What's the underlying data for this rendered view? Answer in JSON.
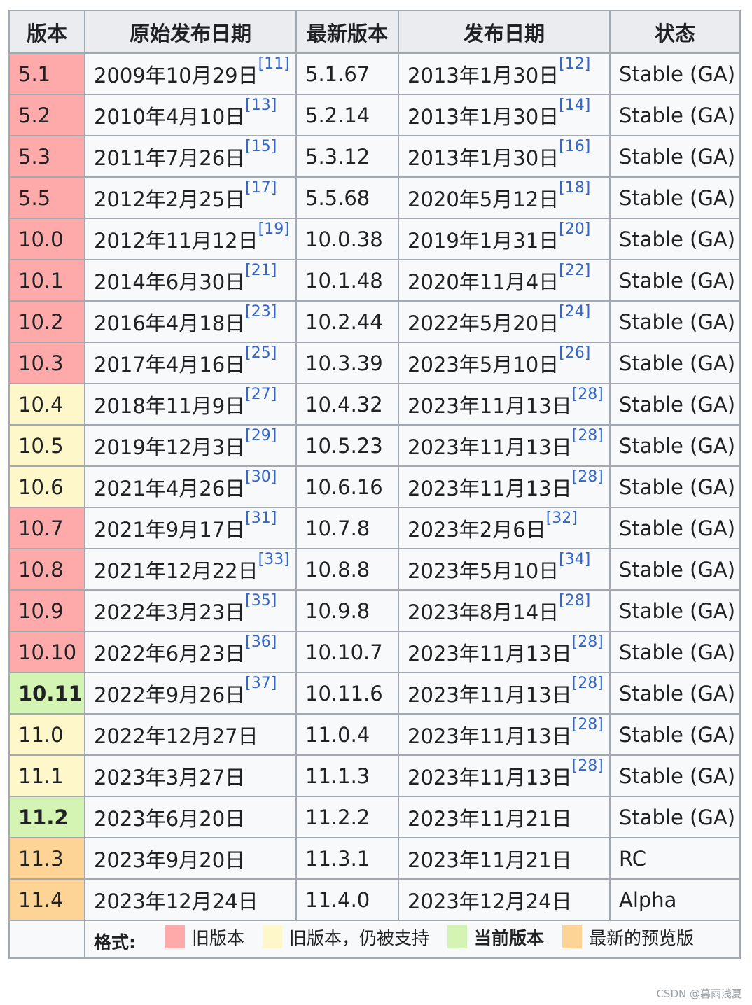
{
  "headers": [
    "版本",
    "原始发布日期",
    "最新版本",
    "发布日期",
    "状态"
  ],
  "rows": [
    {
      "version": "5.1",
      "class": "old",
      "orig": "2009年10月29日",
      "orig_ref": "[11]",
      "latest": "5.1.67",
      "date": "2013年1月30日",
      "date_ref": "[12]",
      "status": "Stable (GA)"
    },
    {
      "version": "5.2",
      "class": "old",
      "orig": "2010年4月10日",
      "orig_ref": "[13]",
      "latest": "5.2.14",
      "date": "2013年1月30日",
      "date_ref": "[14]",
      "status": "Stable (GA)"
    },
    {
      "version": "5.3",
      "class": "old",
      "orig": "2011年7月26日",
      "orig_ref": "[15]",
      "latest": "5.3.12",
      "date": "2013年1月30日",
      "date_ref": "[16]",
      "status": "Stable (GA)"
    },
    {
      "version": "5.5",
      "class": "old",
      "orig": "2012年2月25日",
      "orig_ref": "[17]",
      "latest": "5.5.68",
      "date": "2020年5月12日",
      "date_ref": "[18]",
      "status": "Stable (GA)"
    },
    {
      "version": "10.0",
      "class": "old",
      "orig": "2012年11月12日",
      "orig_ref": "[19]",
      "latest": "10.0.38",
      "date": "2019年1月31日",
      "date_ref": "[20]",
      "status": "Stable (GA)"
    },
    {
      "version": "10.1",
      "class": "old",
      "orig": "2014年6月30日",
      "orig_ref": "[21]",
      "latest": "10.1.48",
      "date": "2020年11月4日",
      "date_ref": "[22]",
      "status": "Stable (GA)"
    },
    {
      "version": "10.2",
      "class": "old",
      "orig": "2016年4月18日",
      "orig_ref": "[23]",
      "latest": "10.2.44",
      "date": "2022年5月20日",
      "date_ref": "[24]",
      "status": "Stable (GA)"
    },
    {
      "version": "10.3",
      "class": "old",
      "orig": "2017年4月16日",
      "orig_ref": "[25]",
      "latest": "10.3.39",
      "date": "2023年5月10日",
      "date_ref": "[26]",
      "status": "Stable (GA)"
    },
    {
      "version": "10.4",
      "class": "oldsup",
      "orig": "2018年11月9日",
      "orig_ref": "[27]",
      "latest": "10.4.32",
      "date": "2023年11月13日",
      "date_ref": "[28]",
      "status": "Stable (GA)"
    },
    {
      "version": "10.5",
      "class": "oldsup",
      "orig": "2019年12月3日",
      "orig_ref": "[29]",
      "latest": "10.5.23",
      "date": "2023年11月13日",
      "date_ref": "[28]",
      "status": "Stable (GA)"
    },
    {
      "version": "10.6",
      "class": "oldsup",
      "orig": "2021年4月26日",
      "orig_ref": "[30]",
      "latest": "10.6.16",
      "date": "2023年11月13日",
      "date_ref": "[28]",
      "status": "Stable (GA)"
    },
    {
      "version": "10.7",
      "class": "old",
      "orig": "2021年9月17日",
      "orig_ref": "[31]",
      "latest": "10.7.8",
      "date": "2023年2月6日",
      "date_ref": "[32]",
      "status": "Stable (GA)"
    },
    {
      "version": "10.8",
      "class": "old",
      "orig": "2021年12月22日",
      "orig_ref": "[33]",
      "latest": "10.8.8",
      "date": "2023年5月10日",
      "date_ref": "[34]",
      "status": "Stable (GA)"
    },
    {
      "version": "10.9",
      "class": "old",
      "orig": "2022年3月23日",
      "orig_ref": "[35]",
      "latest": "10.9.8",
      "date": "2023年8月14日",
      "date_ref": "[28]",
      "status": "Stable (GA)"
    },
    {
      "version": "10.10",
      "class": "old",
      "orig": "2022年6月23日",
      "orig_ref": "[36]",
      "latest": "10.10.7",
      "date": "2023年11月13日",
      "date_ref": "[28]",
      "status": "Stable (GA)"
    },
    {
      "version": "10.11",
      "class": "cur",
      "orig": "2022年9月26日",
      "orig_ref": "[37]",
      "latest": "10.11.6",
      "date": "2023年11月13日",
      "date_ref": "[28]",
      "status": "Stable (GA)"
    },
    {
      "version": "11.0",
      "class": "oldsup",
      "orig": "2022年12月27日",
      "orig_ref": "",
      "latest": "11.0.4",
      "date": "2023年11月13日",
      "date_ref": "[28]",
      "status": "Stable (GA)"
    },
    {
      "version": "11.1",
      "class": "oldsup",
      "orig": "2023年3月27日",
      "orig_ref": "",
      "latest": "11.1.3",
      "date": "2023年11月13日",
      "date_ref": "[28]",
      "status": "Stable (GA)"
    },
    {
      "version": "11.2",
      "class": "cur",
      "orig": "2023年6月20日",
      "orig_ref": "",
      "latest": "11.2.2",
      "date": "2023年11月21日",
      "date_ref": "",
      "status": "Stable (GA)"
    },
    {
      "version": "11.3",
      "class": "pre",
      "orig": "2023年9月20日",
      "orig_ref": "",
      "latest": "11.3.1",
      "date": "2023年11月21日",
      "date_ref": "",
      "status": "RC"
    },
    {
      "version": "11.4",
      "class": "pre",
      "orig": "2023年12月24日",
      "orig_ref": "",
      "latest": "11.4.0",
      "date": "2023年12月24日",
      "date_ref": "",
      "status": "Alpha"
    }
  ],
  "legend": {
    "title": "格式:",
    "items": [
      {
        "class": "old",
        "label": "旧版本"
      },
      {
        "class": "oldsup",
        "label": "旧版本，仍被支持"
      },
      {
        "class": "cur",
        "label": "当前版本"
      },
      {
        "class": "pre",
        "label": "最新的预览版"
      }
    ]
  },
  "colors": {
    "old": "#ffaaaa",
    "oldsup": "#fef7c9",
    "cur": "#d4f4b4",
    "pre": "#fed496",
    "link": "#3366cc"
  },
  "watermark": "CSDN @暮雨浅夏"
}
